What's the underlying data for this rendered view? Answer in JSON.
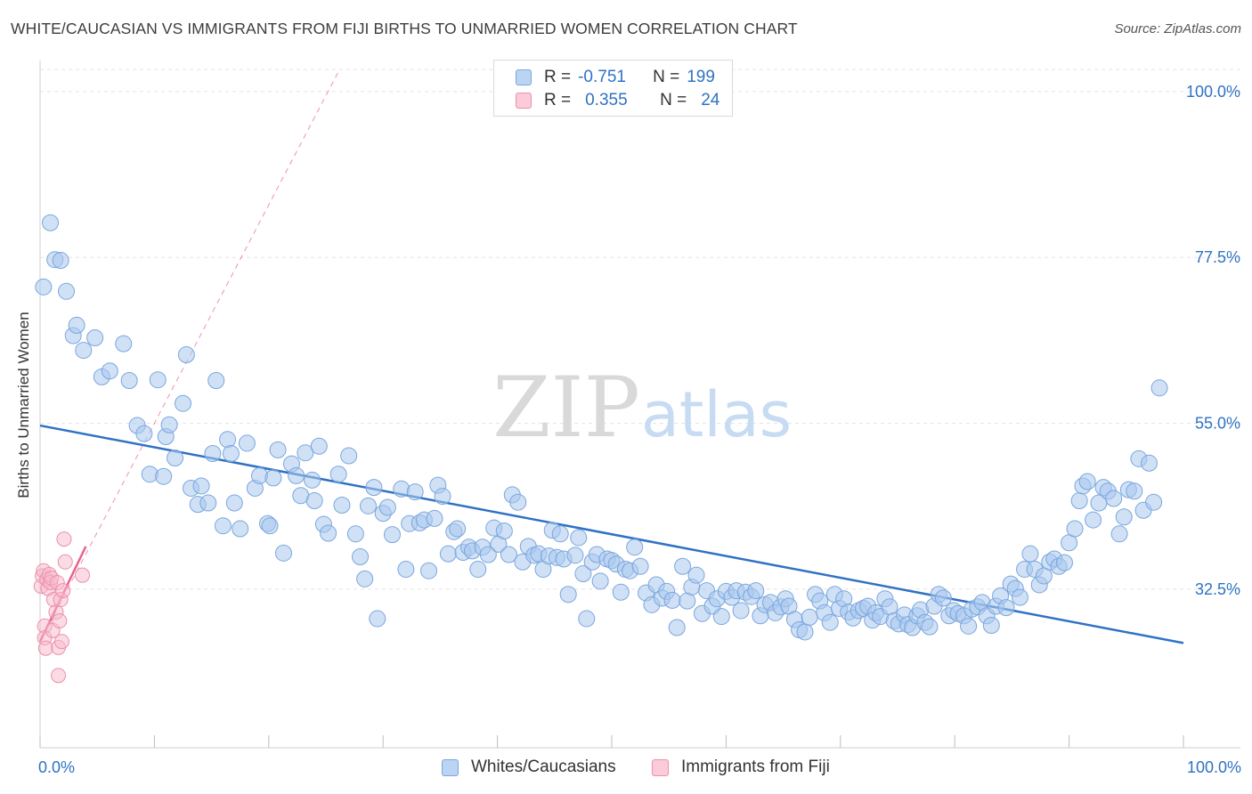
{
  "title": "WHITE/CAUCASIAN VS IMMIGRANTS FROM FIJI BIRTHS TO UNMARRIED WOMEN CORRELATION CHART",
  "source": "Source: ZipAtlas.com",
  "watermark": {
    "zip": "ZIP",
    "atlas": "atlas"
  },
  "legend": {
    "row1": {
      "r_label": "R =",
      "r_value": "-0.751",
      "n_label": "N =",
      "n_value": "199"
    },
    "row2": {
      "r_label": "R =",
      "r_value": "0.355",
      "n_label": "N =",
      "n_value": "24"
    }
  },
  "colors": {
    "blue_fill": "#aac8ef",
    "blue_stroke": "#7aa6dd",
    "blue_line": "#2f72c4",
    "pink_fill": "#f7b9cb",
    "pink_stroke": "#ec8fab",
    "pink_line": "#e8628e",
    "axis_text": "#2f72c4",
    "grid": "#e3e3e3"
  },
  "chart_data": {
    "type": "scatter",
    "xlabel": "",
    "ylabel": "Births to Unmarried Women",
    "x_tick_labels": [
      "0.0%",
      "100.0%"
    ],
    "y_tick_labels": [
      "100.0%",
      "77.5%",
      "55.0%",
      "32.5%"
    ],
    "y_ticks": [
      100,
      77.5,
      55,
      32.5
    ],
    "xlim": [
      0,
      100
    ],
    "ylim": [
      11,
      103
    ],
    "grid": "horizontal dashed",
    "series": [
      {
        "name": "Whites/Caucasians",
        "color": "#aac8ef",
        "trend": {
          "x": [
            0,
            100
          ],
          "y": [
            54.7,
            25.2
          ]
        },
        "points": [
          [
            0.3,
            73.5
          ],
          [
            0.9,
            82.2
          ],
          [
            1.3,
            77.2
          ],
          [
            1.8,
            77.1
          ],
          [
            2.3,
            72.9
          ],
          [
            2.9,
            66.9
          ],
          [
            3.2,
            68.3
          ],
          [
            3.8,
            64.9
          ],
          [
            4.8,
            66.6
          ],
          [
            5.4,
            61.3
          ],
          [
            6.1,
            62.1
          ],
          [
            7.3,
            65.8
          ],
          [
            7.8,
            60.8
          ],
          [
            8.5,
            54.7
          ],
          [
            9.1,
            53.6
          ],
          [
            9.6,
            48.1
          ],
          [
            10.3,
            60.9
          ],
          [
            10.8,
            47.8
          ],
          [
            11.0,
            53.2
          ],
          [
            11.3,
            54.8
          ],
          [
            11.8,
            50.3
          ],
          [
            12.5,
            57.7
          ],
          [
            12.8,
            64.3
          ],
          [
            13.2,
            46.2
          ],
          [
            13.8,
            44.0
          ],
          [
            14.1,
            46.5
          ],
          [
            14.7,
            44.2
          ],
          [
            15.1,
            50.9
          ],
          [
            15.4,
            60.8
          ],
          [
            16.0,
            41.1
          ],
          [
            16.4,
            52.8
          ],
          [
            16.7,
            50.9
          ],
          [
            17.0,
            44.2
          ],
          [
            17.5,
            40.7
          ],
          [
            18.1,
            52.3
          ],
          [
            18.8,
            46.2
          ],
          [
            19.2,
            47.9
          ],
          [
            19.9,
            41.4
          ],
          [
            20.1,
            41.1
          ],
          [
            20.4,
            47.6
          ],
          [
            20.8,
            51.4
          ],
          [
            21.3,
            37.4
          ],
          [
            22.0,
            49.5
          ],
          [
            22.4,
            47.9
          ],
          [
            22.8,
            45.2
          ],
          [
            23.2,
            51.0
          ],
          [
            23.8,
            47.3
          ],
          [
            24.0,
            44.5
          ],
          [
            24.4,
            51.9
          ],
          [
            24.8,
            41.3
          ],
          [
            25.2,
            40.1
          ],
          [
            26.1,
            48.1
          ],
          [
            26.4,
            43.9
          ],
          [
            27.0,
            50.6
          ],
          [
            27.6,
            40.0
          ],
          [
            28.0,
            36.9
          ],
          [
            28.4,
            33.9
          ],
          [
            28.7,
            43.8
          ],
          [
            29.2,
            46.3
          ],
          [
            29.5,
            28.5
          ],
          [
            30.0,
            42.8
          ],
          [
            30.4,
            43.6
          ],
          [
            30.8,
            39.9
          ],
          [
            31.6,
            46.1
          ],
          [
            32.0,
            35.2
          ],
          [
            32.3,
            41.4
          ],
          [
            32.8,
            45.7
          ],
          [
            33.2,
            41.5
          ],
          [
            33.6,
            41.9
          ],
          [
            34.0,
            35.0
          ],
          [
            34.5,
            42.1
          ],
          [
            34.8,
            46.6
          ],
          [
            35.2,
            45.1
          ],
          [
            35.7,
            37.3
          ],
          [
            36.2,
            40.3
          ],
          [
            36.5,
            40.7
          ],
          [
            37.0,
            37.5
          ],
          [
            37.5,
            38.2
          ],
          [
            37.8,
            37.7
          ],
          [
            38.3,
            35.2
          ],
          [
            38.7,
            38.2
          ],
          [
            39.2,
            37.2
          ],
          [
            39.7,
            40.8
          ],
          [
            40.1,
            38.6
          ],
          [
            40.6,
            40.4
          ],
          [
            41.0,
            37.2
          ],
          [
            41.3,
            45.3
          ],
          [
            41.8,
            44.3
          ],
          [
            42.2,
            36.2
          ],
          [
            42.7,
            38.3
          ],
          [
            43.2,
            37.1
          ],
          [
            43.6,
            37.3
          ],
          [
            44.0,
            35.2
          ],
          [
            44.5,
            37.0
          ],
          [
            44.8,
            40.5
          ],
          [
            45.2,
            36.8
          ],
          [
            45.5,
            40.0
          ],
          [
            45.8,
            36.6
          ],
          [
            46.2,
            31.8
          ],
          [
            46.8,
            37.1
          ],
          [
            47.1,
            39.5
          ],
          [
            47.5,
            34.6
          ],
          [
            47.8,
            28.5
          ],
          [
            48.3,
            36.2
          ],
          [
            48.7,
            37.2
          ],
          [
            49.0,
            33.6
          ],
          [
            49.6,
            36.6
          ],
          [
            50.0,
            36.4
          ],
          [
            50.4,
            35.9
          ],
          [
            50.8,
            32.1
          ],
          [
            51.2,
            35.2
          ],
          [
            51.6,
            35.0
          ],
          [
            52.0,
            38.2
          ],
          [
            52.5,
            35.6
          ],
          [
            53.0,
            32.0
          ],
          [
            53.5,
            30.4
          ],
          [
            53.9,
            33.1
          ],
          [
            54.4,
            31.3
          ],
          [
            54.8,
            32.2
          ],
          [
            55.3,
            31.0
          ],
          [
            55.7,
            27.3
          ],
          [
            56.2,
            35.6
          ],
          [
            56.6,
            30.9
          ],
          [
            57.0,
            32.8
          ],
          [
            57.4,
            34.4
          ],
          [
            57.9,
            29.2
          ],
          [
            58.3,
            32.3
          ],
          [
            58.8,
            30.2
          ],
          [
            59.2,
            31.2
          ],
          [
            59.6,
            28.8
          ],
          [
            60.0,
            32.2
          ],
          [
            60.5,
            31.4
          ],
          [
            60.9,
            32.3
          ],
          [
            61.3,
            29.6
          ],
          [
            61.7,
            32.1
          ],
          [
            62.2,
            31.5
          ],
          [
            62.6,
            32.3
          ],
          [
            63.0,
            28.9
          ],
          [
            63.4,
            30.4
          ],
          [
            63.9,
            30.7
          ],
          [
            64.3,
            29.3
          ],
          [
            64.8,
            30.1
          ],
          [
            65.2,
            31.2
          ],
          [
            65.5,
            30.2
          ],
          [
            66.0,
            28.4
          ],
          [
            66.4,
            27.0
          ],
          [
            66.9,
            26.7
          ],
          [
            67.3,
            28.7
          ],
          [
            67.8,
            31.8
          ],
          [
            68.2,
            30.9
          ],
          [
            68.6,
            29.3
          ],
          [
            69.1,
            28.0
          ],
          [
            69.5,
            31.8
          ],
          [
            69.9,
            29.9
          ],
          [
            70.3,
            31.2
          ],
          [
            70.7,
            29.4
          ],
          [
            71.1,
            28.6
          ],
          [
            71.6,
            29.6
          ],
          [
            72.0,
            29.9
          ],
          [
            72.4,
            30.2
          ],
          [
            72.8,
            28.3
          ],
          [
            73.1,
            29.3
          ],
          [
            73.5,
            28.8
          ],
          [
            73.9,
            31.2
          ],
          [
            74.3,
            30.1
          ],
          [
            74.7,
            28.2
          ],
          [
            75.1,
            27.8
          ],
          [
            75.6,
            29.0
          ],
          [
            75.9,
            27.7
          ],
          [
            76.3,
            27.3
          ],
          [
            76.7,
            28.9
          ],
          [
            77.0,
            29.7
          ],
          [
            77.4,
            28.0
          ],
          [
            77.8,
            27.4
          ],
          [
            78.2,
            30.2
          ],
          [
            78.6,
            31.8
          ],
          [
            79.0,
            31.3
          ],
          [
            79.5,
            28.9
          ],
          [
            79.9,
            29.6
          ],
          [
            80.3,
            29.2
          ],
          [
            80.8,
            28.9
          ],
          [
            81.2,
            27.5
          ],
          [
            81.5,
            29.8
          ],
          [
            82.0,
            30.1
          ],
          [
            82.4,
            30.7
          ],
          [
            82.8,
            28.9
          ],
          [
            83.2,
            27.6
          ],
          [
            83.6,
            30.2
          ],
          [
            84.0,
            31.6
          ],
          [
            84.5,
            30.0
          ],
          [
            84.9,
            33.2
          ],
          [
            85.3,
            32.6
          ],
          [
            85.7,
            31.4
          ],
          [
            86.1,
            35.2
          ],
          [
            86.6,
            37.3
          ],
          [
            87.0,
            35.2
          ],
          [
            87.4,
            33.1
          ],
          [
            87.8,
            34.3
          ],
          [
            88.3,
            36.2
          ],
          [
            88.7,
            36.6
          ],
          [
            89.1,
            35.6
          ],
          [
            89.6,
            36.1
          ],
          [
            90.0,
            38.8
          ],
          [
            90.5,
            40.7
          ],
          [
            90.9,
            44.5
          ],
          [
            91.2,
            46.5
          ],
          [
            91.6,
            47.1
          ],
          [
            92.1,
            41.9
          ],
          [
            92.6,
            44.2
          ],
          [
            93.0,
            46.3
          ],
          [
            93.4,
            45.8
          ],
          [
            93.9,
            44.8
          ],
          [
            94.4,
            40.0
          ],
          [
            94.8,
            42.3
          ],
          [
            95.2,
            46.0
          ],
          [
            95.7,
            45.8
          ],
          [
            96.1,
            50.2
          ],
          [
            96.5,
            43.2
          ],
          [
            97.0,
            49.6
          ],
          [
            97.4,
            44.3
          ],
          [
            97.9,
            59.8
          ]
        ]
      },
      {
        "name": "Immigrants from Fiji",
        "color": "#f7b9cb",
        "trend": {
          "x": [
            0,
            4.0
          ],
          "y": [
            25.4,
            38.3
          ],
          "dashed_to": [
            26.2,
            103
          ]
        },
        "points": [
          [
            0.1,
            32.9
          ],
          [
            0.2,
            34.3
          ],
          [
            0.3,
            35.0
          ],
          [
            0.4,
            27.5
          ],
          [
            0.4,
            25.9
          ],
          [
            0.5,
            24.5
          ],
          [
            0.6,
            33.8
          ],
          [
            0.7,
            32.6
          ],
          [
            0.8,
            34.5
          ],
          [
            0.9,
            33.4
          ],
          [
            1.0,
            34.0
          ],
          [
            1.1,
            26.9
          ],
          [
            1.2,
            31.1
          ],
          [
            1.4,
            29.4
          ],
          [
            1.5,
            33.4
          ],
          [
            1.6,
            24.6
          ],
          [
            1.6,
            20.8
          ],
          [
            1.7,
            28.2
          ],
          [
            1.8,
            31.1
          ],
          [
            1.9,
            25.4
          ],
          [
            2.0,
            32.3
          ],
          [
            2.1,
            39.3
          ],
          [
            2.2,
            36.2
          ],
          [
            3.7,
            34.4
          ]
        ]
      }
    ]
  },
  "bottom_legend": [
    "Whites/Caucasians",
    "Immigrants from Fiji"
  ]
}
